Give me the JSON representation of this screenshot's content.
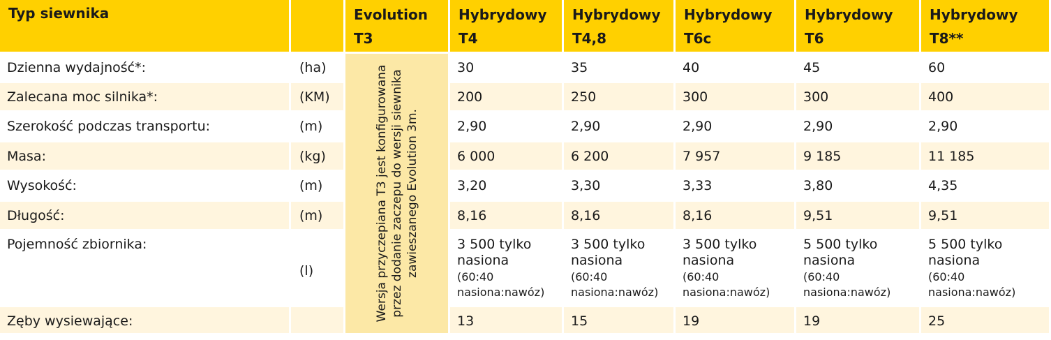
{
  "header": {
    "col0": "Typ siewnika",
    "col1": "",
    "models": [
      {
        "line1": "Evolution",
        "line2": "T3"
      },
      {
        "line1": "Hybrydowy",
        "line2": "T4"
      },
      {
        "line1": "Hybrydowy",
        "line2": "T4,8"
      },
      {
        "line1": "Hybrydowy",
        "line2": "T6c"
      },
      {
        "line1": "Hybrydowy",
        "line2": "T6"
      },
      {
        "line1": "Hybrydowy",
        "line2": "T8**"
      }
    ]
  },
  "t3_note": "Wersja przyczepiana T3 jest konfigurowana przez dodanie zaczepu do wersji siewnika zawieszanego Evolution 3m.",
  "rows": [
    {
      "label": "Dzienna wydajność*:",
      "unit": "(ha)",
      "values": [
        "30",
        "35",
        "40",
        "45",
        "60"
      ]
    },
    {
      "label": "Zalecana moc silnika*:",
      "unit": "(KM)",
      "values": [
        "200",
        "250",
        "300",
        "300",
        "400"
      ]
    },
    {
      "label": "Szerokość podczas transportu:",
      "unit": "(m)",
      "values": [
        "2,90",
        "2,90",
        "2,90",
        "2,90",
        "2,90"
      ]
    },
    {
      "label": "Masa:",
      "unit": "(kg)",
      "values": [
        "6 000",
        "6 200",
        "7 957",
        "9 185",
        "11 185"
      ]
    },
    {
      "label": "Wysokość:",
      "unit": "(m)",
      "values": [
        "3,20",
        "3,30",
        "3,33",
        "3,80",
        "4,35"
      ]
    },
    {
      "label": "Długość:",
      "unit": "(m)",
      "values": [
        "8,16",
        "8,16",
        "8,16",
        "9,51",
        "9,51"
      ]
    }
  ],
  "capacity": {
    "label": "Pojemność zbiornika:",
    "unit": "(l)",
    "values": [
      {
        "main": "3 500 tylko nasiona",
        "sub": "(60:40 nasiona:nawóz)"
      },
      {
        "main": "3 500 tylko nasiona",
        "sub": "(60:40 nasiona:nawóz)"
      },
      {
        "main": "3 500 tylko nasiona",
        "sub": "(60:40 nasiona:nawóz)"
      },
      {
        "main": "5 500 tylko nasiona",
        "sub": "(60:40 nasiona:nawóz)"
      },
      {
        "main": "5 500 tylko nasiona",
        "sub": "(60:40 nasiona:nawóz)"
      }
    ]
  },
  "teeth": {
    "label": "Zęby wysiewające:",
    "unit": "",
    "values": [
      "13",
      "15",
      "19",
      "19",
      "25"
    ]
  }
}
